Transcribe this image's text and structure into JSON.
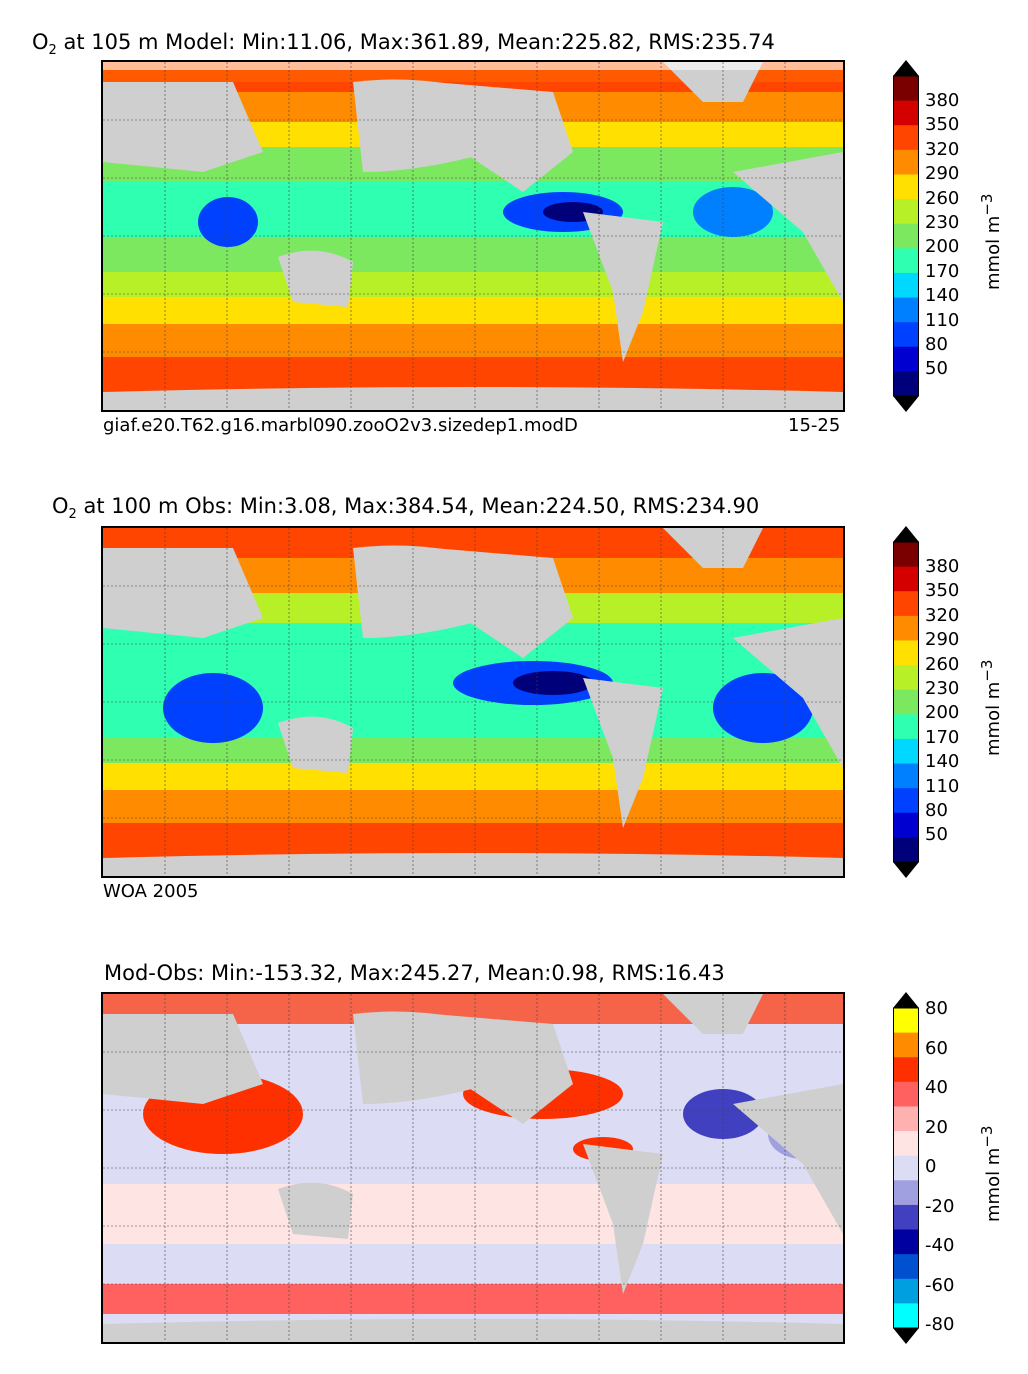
{
  "panels": [
    {
      "title_var": "O",
      "title_sub": "2",
      "title_rest": " at 105 m Model: Min:11.06, Max:361.89, Mean:225.82, RMS:235.74",
      "footer_left": "giaf.e20.T62.g16.marbl090.zooO2v3.sizedep1.modD",
      "footer_right": "15-25"
    },
    {
      "title_var": "O",
      "title_sub": "2",
      "title_rest": " at 100 m Obs: Min:3.08, Max:384.54, Mean:224.50, RMS:234.90",
      "footer_left": "WOA 2005",
      "footer_right": ""
    },
    {
      "title_var": "",
      "title_sub": "",
      "title_rest": "Mod-Obs: Min:-153.32, Max:245.27, Mean:0.98, RMS:16.43",
      "footer_left": "",
      "footer_right": ""
    }
  ],
  "colorbar_o2": {
    "unit": "mmol m",
    "unit_exp": "−3",
    "ticks": [
      "380",
      "350",
      "320",
      "290",
      "260",
      "230",
      "200",
      "170",
      "140",
      "110",
      "80",
      "50"
    ],
    "colors": [
      "#7a0000",
      "#d40000",
      "#ff4500",
      "#ff8c00",
      "#ffe000",
      "#b8f028",
      "#7ce860",
      "#2effb0",
      "#00d8ff",
      "#0080ff",
      "#0040ff",
      "#0000d0",
      "#00007a"
    ]
  },
  "colorbar_diff": {
    "unit": "mmol m",
    "unit_exp": "−3",
    "ticks": [
      "80",
      "60",
      "40",
      "20",
      "0",
      "-20",
      "-40",
      "-60",
      "-80"
    ],
    "colors": [
      "#ffff00",
      "#ff8c00",
      "#ff3000",
      "#ff6060",
      "#ffb0b0",
      "#ffe4e4",
      "#dcdcf4",
      "#a0a0e0",
      "#4040c0",
      "#0000a0",
      "#0050d0",
      "#00a0e0",
      "#00ffff"
    ]
  }
}
